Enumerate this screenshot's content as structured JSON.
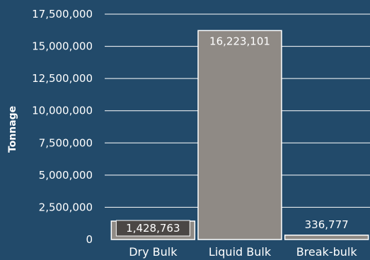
{
  "chart_data": {
    "type": "bar",
    "title": "",
    "xlabel": "",
    "ylabel": "Tonnage",
    "categories": [
      "Dry Bulk",
      "Liquid Bulk",
      "Break-bulk"
    ],
    "values": [
      1428763,
      16223101,
      336777
    ],
    "value_labels": [
      "1,428,763",
      "16,223,101",
      "336,777"
    ],
    "ylim": [
      0,
      17500000
    ],
    "y_ticks": [
      0,
      2500000,
      5000000,
      7500000,
      10000000,
      12500000,
      15000000,
      17500000
    ],
    "y_tick_labels": [
      "0",
      "2,500,000",
      "5,000,000",
      "7,500,000",
      "10,000,000",
      "12,500,000",
      "15,000,000",
      "17,500,000"
    ],
    "grid": true,
    "legend": "none"
  },
  "colors": {
    "background": "#224a6a",
    "gridline": "#ffffff",
    "bar_fill": "#8f8a85",
    "bar_stroke": "#ffffff",
    "label_box_dark": "#4b4745",
    "label_box_light": "#8f8a85",
    "text": "#ffffff"
  }
}
